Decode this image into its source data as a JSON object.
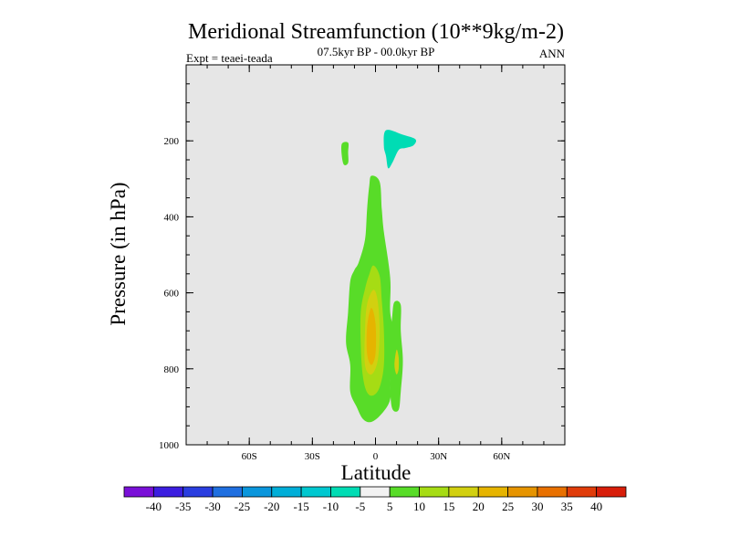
{
  "chart_data": {
    "type": "contour",
    "title": "Meridional Streamfunction (10**9kg/m-2)",
    "subtitle": "07.5kyr BP - 00.0kyr BP",
    "left_label": "Expt = teaei-teada",
    "right_label": "ANN",
    "xlabel": "Latitude",
    "ylabel": "Pressure (in hPa)",
    "xlim": [
      -90,
      90
    ],
    "ylim": [
      0,
      1000
    ],
    "y_inverted": true,
    "x_ticks": [
      {
        "value": -60,
        "label": "60S"
      },
      {
        "value": -30,
        "label": "30S"
      },
      {
        "value": 0,
        "label": "0"
      },
      {
        "value": 30,
        "label": "30N"
      },
      {
        "value": 60,
        "label": "60N"
      }
    ],
    "y_ticks": [
      {
        "value": 200,
        "label": "200"
      },
      {
        "value": 400,
        "label": "400"
      },
      {
        "value": 600,
        "label": "600"
      },
      {
        "value": 800,
        "label": "800"
      },
      {
        "value": 1000,
        "label": "1000"
      }
    ],
    "background_color": "#e6e6e6",
    "colorbar": {
      "levels": [
        -40,
        -35,
        -30,
        -25,
        -20,
        -15,
        -10,
        -5,
        5,
        10,
        15,
        20,
        25,
        30,
        35,
        40
      ],
      "colors": [
        "#7a10d8",
        "#3c1ee0",
        "#2a3ee0",
        "#1f6fe0",
        "#0a96dc",
        "#00aed8",
        "#00c8d0",
        "#00dcb4",
        "#f2f2f2",
        "#58dc28",
        "#a6dc14",
        "#d2d010",
        "#e6b400",
        "#e69400",
        "#e87000",
        "#e03c0a",
        "#d81e0a"
      ]
    },
    "regions": [
      {
        "name": "band-5-10-upper-left",
        "color": "#58dc28",
        "points": [
          [
            -16,
            208
          ],
          [
            -13,
            205
          ],
          [
            -13,
            230
          ],
          [
            -13,
            258
          ],
          [
            -15,
            263
          ],
          [
            -16,
            240
          ]
        ]
      },
      {
        "name": "band-neg10-neg5-upper-right",
        "color": "#00dcb4",
        "points": [
          [
            5,
            172
          ],
          [
            13,
            184
          ],
          [
            19,
            196
          ],
          [
            18,
            212
          ],
          [
            14,
            219
          ],
          [
            11,
            224
          ],
          [
            8,
            258
          ],
          [
            6,
            272
          ],
          [
            5,
            240
          ],
          [
            4,
            214
          ]
        ]
      },
      {
        "name": "band-5-10-main",
        "color": "#58dc28",
        "points": [
          [
            -2,
            292
          ],
          [
            2,
            308
          ],
          [
            3,
            380
          ],
          [
            4,
            440
          ],
          [
            7,
            560
          ],
          [
            7,
            650
          ],
          [
            9,
            720
          ],
          [
            7,
            820
          ],
          [
            7,
            880
          ],
          [
            3,
            918
          ],
          [
            -2,
            940
          ],
          [
            -6,
            932
          ],
          [
            -9,
            900
          ],
          [
            -12,
            860
          ],
          [
            -12,
            790
          ],
          [
            -14,
            730
          ],
          [
            -13,
            650
          ],
          [
            -12,
            570
          ],
          [
            -10,
            540
          ],
          [
            -8,
            520
          ],
          [
            -5,
            460
          ],
          [
            -4,
            380
          ],
          [
            -3,
            320
          ]
        ]
      },
      {
        "name": "band-5-10-right-lobe",
        "color": "#58dc28",
        "points": [
          [
            9,
            624
          ],
          [
            12,
            632
          ],
          [
            12,
            700
          ],
          [
            13,
            780
          ],
          [
            12,
            860
          ],
          [
            11,
            908
          ],
          [
            8,
            905
          ],
          [
            7,
            850
          ],
          [
            7,
            740
          ],
          [
            8,
            660
          ]
        ]
      },
      {
        "name": "band-10-15",
        "color": "#a6dc14",
        "points": [
          [
            -1,
            528
          ],
          [
            2,
            556
          ],
          [
            3,
            620
          ],
          [
            4,
            700
          ],
          [
            4,
            790
          ],
          [
            2,
            848
          ],
          [
            -1,
            870
          ],
          [
            -4,
            862
          ],
          [
            -6,
            820
          ],
          [
            -7,
            740
          ],
          [
            -7,
            650
          ],
          [
            -5,
            590
          ],
          [
            -3,
            552
          ]
        ]
      },
      {
        "name": "band-15-20",
        "color": "#d2d010",
        "points": [
          [
            -1,
            592
          ],
          [
            1,
            620
          ],
          [
            2,
            700
          ],
          [
            1,
            780
          ],
          [
            -2,
            815
          ],
          [
            -5,
            790
          ],
          [
            -5,
            700
          ],
          [
            -4,
            630
          ]
        ]
      },
      {
        "name": "band-20-25",
        "color": "#e6b400",
        "points": [
          [
            -2,
            640
          ],
          [
            0,
            680
          ],
          [
            0,
            760
          ],
          [
            -2,
            790
          ],
          [
            -4,
            760
          ],
          [
            -4,
            690
          ]
        ]
      },
      {
        "name": "band-15-20-right-lobe",
        "color": "#d2d010",
        "points": [
          [
            10,
            750
          ],
          [
            11,
            770
          ],
          [
            11,
            800
          ],
          [
            10,
            815
          ],
          [
            9,
            790
          ]
        ]
      }
    ]
  }
}
